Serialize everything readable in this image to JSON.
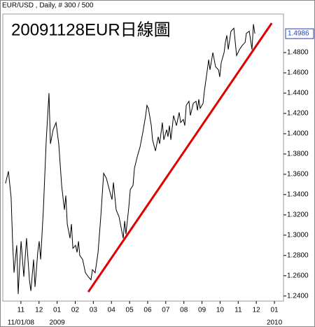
{
  "chart_data": {
    "type": "line",
    "title": "EUR/USD , Daily, # 300 / 500",
    "subtitle": "20091128EUR日線圖",
    "x": [
      0.15,
      0.31,
      0.46,
      0.54,
      0.62,
      0.77,
      0.85,
      0.93,
      1.01,
      1.16,
      1.31,
      1.47,
      1.55,
      1.7,
      1.78,
      1.93,
      2.01,
      2.09,
      2.24,
      2.4,
      2.55,
      2.63,
      2.78,
      2.94,
      3.09,
      3.25,
      3.4,
      3.48,
      3.56,
      3.71,
      3.79,
      3.87,
      4.02,
      4.1,
      4.18,
      4.25,
      4.41,
      4.56,
      4.72,
      4.87,
      4.95,
      5.1,
      5.26,
      5.41,
      5.57,
      5.72,
      5.88,
      6.03,
      6.11,
      6.26,
      6.42,
      6.57,
      6.65,
      6.73,
      6.8,
      6.96,
      7.04,
      7.19,
      7.27,
      7.42,
      7.58,
      7.73,
      7.89,
      7.96,
      8.04,
      8.2,
      8.27,
      8.43,
      8.58,
      8.66,
      8.81,
      8.89,
      9.05,
      9.12,
      9.2,
      9.28,
      9.43,
      9.59,
      9.74,
      9.82,
      9.97,
      10.05,
      10.13,
      10.28,
      10.36,
      10.52,
      10.67,
      10.75,
      10.82,
      10.9,
      11.06,
      11.13,
      11.21,
      11.37,
      11.44,
      11.6,
      11.75,
      11.91,
      11.98,
      12.06,
      12.22,
      12.29,
      12.37,
      12.45,
      12.6,
      12.76,
      12.91,
      13.07,
      13.22,
      13.38,
      13.45,
      13.61,
      13.76,
      13.84,
      13.92
    ],
    "values": [
      1.351,
      1.363,
      1.337,
      1.294,
      1.263,
      1.29,
      1.242,
      1.27,
      1.294,
      1.259,
      1.297,
      1.256,
      1.245,
      1.276,
      1.249,
      1.283,
      1.294,
      1.276,
      1.325,
      1.394,
      1.44,
      1.39,
      1.404,
      1.411,
      1.39,
      1.349,
      1.325,
      1.339,
      1.311,
      1.297,
      1.311,
      1.287,
      1.29,
      1.283,
      1.294,
      1.28,
      1.276,
      1.263,
      1.259,
      1.256,
      1.266,
      1.263,
      1.283,
      1.318,
      1.361,
      1.356,
      1.345,
      1.335,
      1.352,
      1.325,
      1.318,
      1.304,
      1.297,
      1.314,
      1.301,
      1.328,
      1.345,
      1.349,
      1.366,
      1.377,
      1.387,
      1.401,
      1.418,
      1.428,
      1.425,
      1.408,
      1.394,
      1.383,
      1.397,
      1.39,
      1.411,
      1.394,
      1.404,
      1.397,
      1.408,
      1.394,
      1.418,
      1.408,
      1.421,
      1.411,
      1.414,
      1.408,
      1.428,
      1.432,
      1.418,
      1.43,
      1.432,
      1.423,
      1.434,
      1.425,
      1.43,
      1.442,
      1.452,
      1.473,
      1.463,
      1.48,
      1.466,
      1.463,
      1.456,
      1.47,
      1.48,
      1.49,
      1.497,
      1.483,
      1.501,
      1.504,
      1.477,
      1.483,
      1.487,
      1.49,
      1.499,
      1.501,
      1.483,
      1.508,
      1.4986
    ],
    "color": "#000000",
    "current_price": 1.4986,
    "current_price_color": "#1e3cc8",
    "trendline": {
      "x": [
        4.72,
        14.85
      ],
      "values": [
        1.244,
        1.509
      ],
      "color": "#e00000"
    },
    "xlim": [
      0,
      15.5
    ],
    "xticks": [
      {
        "value": 1,
        "label": "11"
      },
      {
        "value": 2,
        "label": "12"
      },
      {
        "value": 3,
        "label": "01"
      },
      {
        "value": 4,
        "label": "02"
      },
      {
        "value": 5,
        "label": "03"
      },
      {
        "value": 6,
        "label": "04"
      },
      {
        "value": 7,
        "label": "05"
      },
      {
        "value": 8,
        "label": "06"
      },
      {
        "value": 9,
        "label": "07"
      },
      {
        "value": 10,
        "label": "08"
      },
      {
        "value": 11,
        "label": "09"
      },
      {
        "value": 12,
        "label": "10"
      },
      {
        "value": 13,
        "label": "11"
      },
      {
        "value": 14,
        "label": "12"
      },
      {
        "value": 15,
        "label": "01"
      }
    ],
    "x_period_labels": [
      {
        "value": 1,
        "label": "11/01/08"
      },
      {
        "value": 3,
        "label": "2009"
      },
      {
        "value": 15,
        "label": "2010"
      }
    ],
    "ylim": [
      1.235,
      1.518
    ],
    "yticks": [
      {
        "value": 1.24,
        "label": "1.2400"
      },
      {
        "value": 1.26,
        "label": "1.2600"
      },
      {
        "value": 1.28,
        "label": "1.2800"
      },
      {
        "value": 1.3,
        "label": "1.3000"
      },
      {
        "value": 1.32,
        "label": "1.3200"
      },
      {
        "value": 1.34,
        "label": "1.3400"
      },
      {
        "value": 1.36,
        "label": "1.3600"
      },
      {
        "value": 1.38,
        "label": "1.3800"
      },
      {
        "value": 1.4,
        "label": "1.4000"
      },
      {
        "value": 1.42,
        "label": "1.4200"
      },
      {
        "value": 1.44,
        "label": "1.4400"
      },
      {
        "value": 1.46,
        "label": "1.4600"
      },
      {
        "value": 1.48,
        "label": "1.4800"
      }
    ],
    "grid": false
  }
}
